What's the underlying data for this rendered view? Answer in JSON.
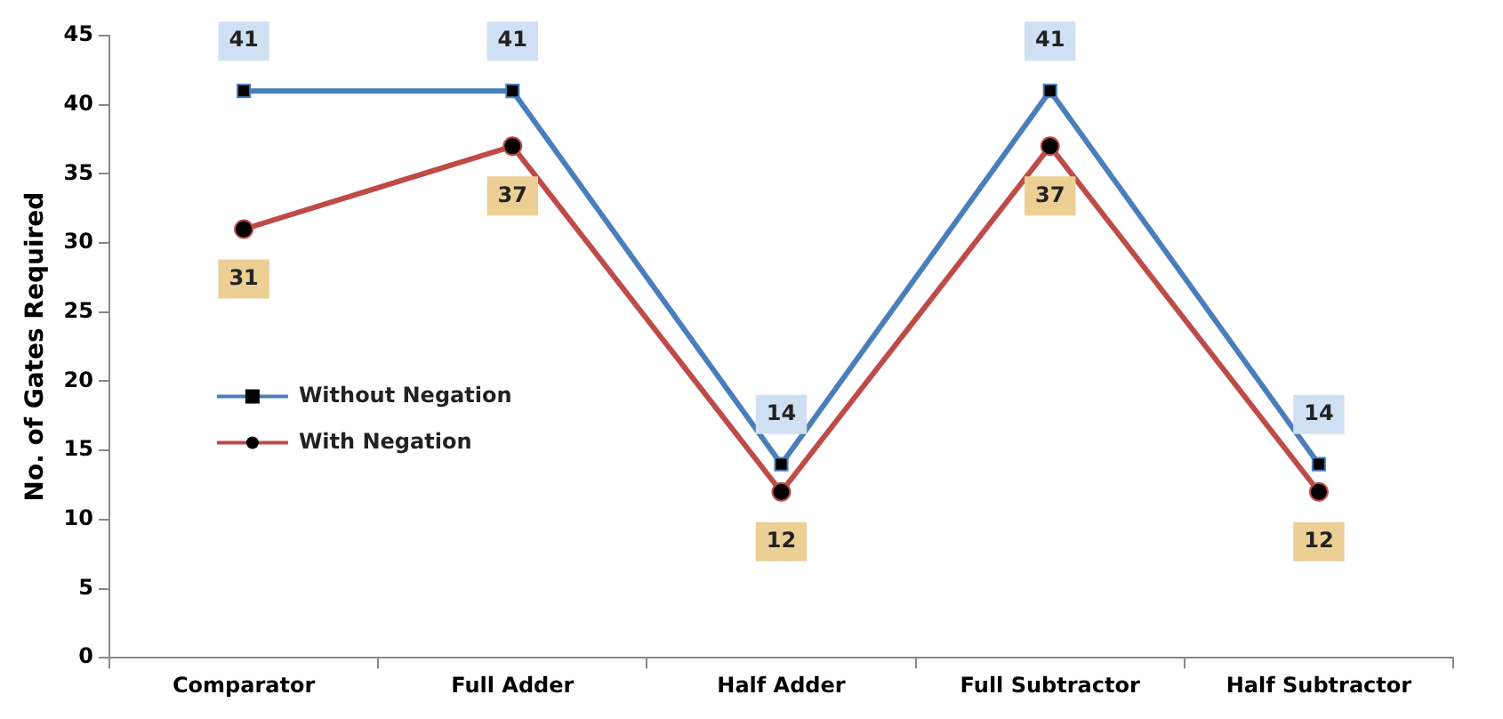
{
  "chart_data": {
    "type": "line",
    "ylabel": "No. of Gates Required",
    "categories": [
      "Comparator",
      "Full Adder",
      "Half Adder",
      "Full Subtractor",
      "Half Subtractor"
    ],
    "series": [
      {
        "name": "Without Negation",
        "color": "#4a7ebb",
        "marker": "square",
        "values": [
          41,
          41,
          14,
          41,
          14
        ]
      },
      {
        "name": "With Negation",
        "color": "#be4b48",
        "marker": "circle",
        "values": [
          31,
          37,
          12,
          37,
          12
        ]
      }
    ],
    "ylim": [
      0,
      45
    ],
    "yticks": [
      0,
      5,
      10,
      15,
      20,
      25,
      30,
      35,
      40,
      45
    ],
    "grid": false,
    "legend": "left",
    "data_labels": true,
    "line_style": "solid"
  }
}
